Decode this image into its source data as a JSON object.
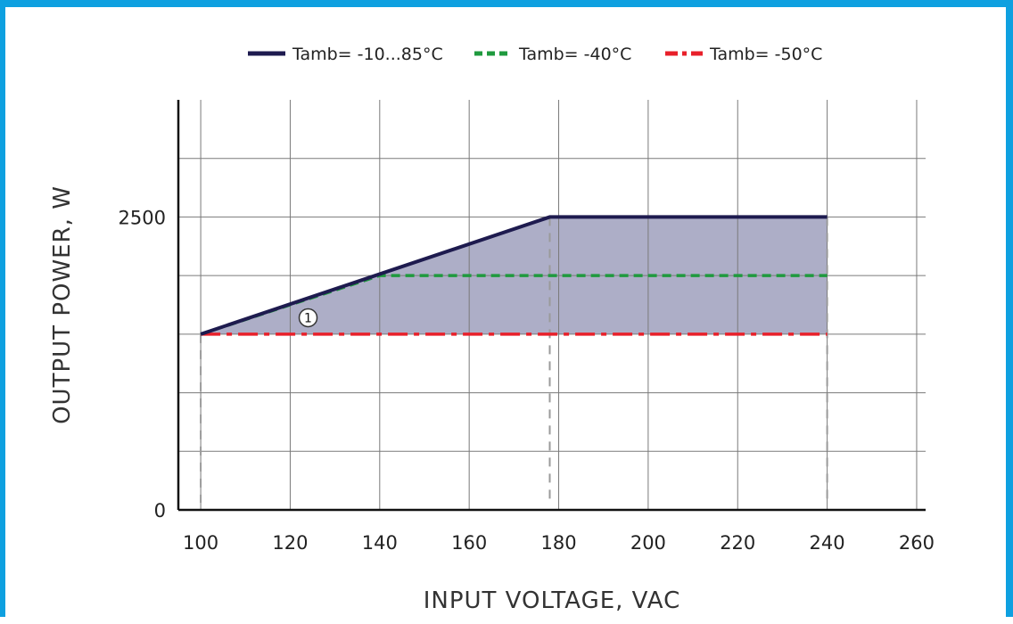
{
  "chart_data": {
    "type": "area",
    "x_ticks": [
      100,
      120,
      140,
      160,
      180,
      200,
      220,
      240,
      260
    ],
    "y_ticks_labeled": [
      0,
      2500
    ],
    "xlabel": "INPUT VOLTAGE, VAC",
    "ylabel": "OUTPUT POWER, W",
    "xlim": [
      95,
      262
    ],
    "ylim": [
      0,
      3500
    ],
    "grid": true,
    "legend_position": "top",
    "series": [
      {
        "name": "Tamb= -10...85°C",
        "style": "solid",
        "color": "#1e1b4f",
        "points": [
          [
            100,
            1500
          ],
          [
            178,
            2500
          ],
          [
            240,
            2500
          ]
        ]
      },
      {
        "name": "Tamb= -40°C",
        "style": "dashed",
        "color": "#1f9a3e",
        "points": [
          [
            100,
            1500
          ],
          [
            140,
            2000
          ],
          [
            240,
            2000
          ]
        ]
      },
      {
        "name": "Tamb= -50°C",
        "style": "dash-dot",
        "color": "#e8202a",
        "points": [
          [
            100,
            1500
          ],
          [
            240,
            1500
          ]
        ]
      }
    ],
    "shaded_area_color": "#a9aac4",
    "reference_lines_x": [
      100,
      178,
      240
    ],
    "annotations": [
      {
        "text": "1",
        "x": 124,
        "y": 1640
      }
    ]
  }
}
